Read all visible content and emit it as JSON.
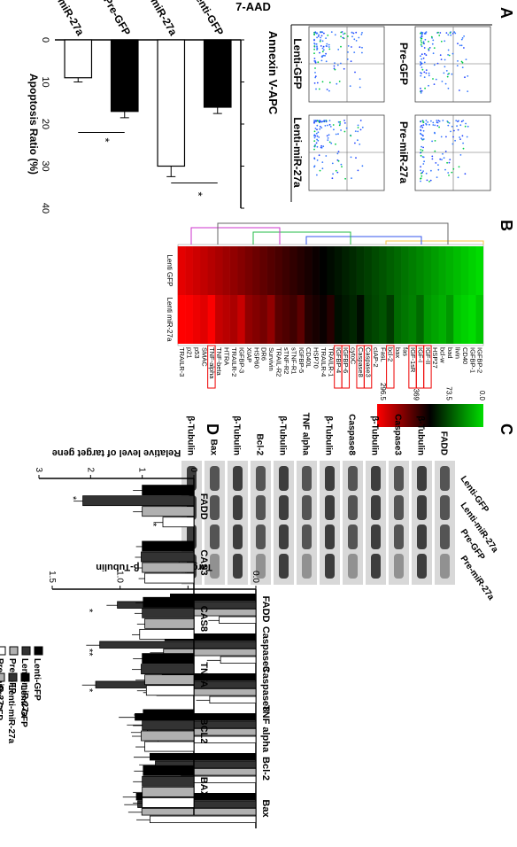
{
  "panels": {
    "a": "A",
    "b": "B",
    "c": "C",
    "d": "D"
  },
  "colors": {
    "black": "#000000",
    "dark": "#333333",
    "gray": "#b0b0b0",
    "white": "#ffffff",
    "heat_green": "#00dd00",
    "heat_red": "#ff0000"
  },
  "panel_a": {
    "axis_y": "7-AAD",
    "axis_x": "Annexin V-APC",
    "scatter_labels": [
      "Lenti-GFP",
      "Lenti-miR-27a",
      "Pre-GFP",
      "Pre-miR-27a"
    ],
    "star": "*"
  },
  "heatmap": {
    "legend_values": [
      "0.0",
      "73.5",
      "369",
      "296.5"
    ],
    "col_labels": [
      "Lenti GFP",
      "Lenti miR-27a"
    ],
    "genes": [
      "IGFBP-2",
      "IGFBP-1",
      "CD40",
      "livin",
      "bad",
      "bcl-w",
      "HSP27",
      "IGF-II",
      "IGF-I",
      "IGF-1sR",
      "fas",
      "bax",
      "bcl-2",
      "FasL",
      "cIAP-2",
      "Caspase3",
      "Caspase8",
      "cytoC",
      "IGFBP-6",
      "IGFBP-4",
      "TRAILR-1",
      "TRAILR-4",
      "HSP70",
      "CD40L",
      "IGFBP-5",
      "sTNF-R1",
      "sTNF-R2",
      "TRAIL-R2",
      "Survivin",
      "DR6",
      "HSP60",
      "XIAP",
      "IGFBP-3",
      "TRAILR-2",
      "HTRA",
      "TNF-beta",
      "TNF-alpha",
      "SMAC",
      "p53",
      "p21",
      "TRAILR-3"
    ],
    "boxed": [
      "IGF-II",
      "IGF-I",
      "IGF-1sR",
      "bcl-2",
      "Caspase3",
      "Caspase8",
      "IGFBP-6",
      "IGFBP-4",
      "TNF-alpha"
    ]
  },
  "blot": {
    "lanes": [
      "Lenti-GFP",
      "Lenti-miR-27a",
      "Pre-GFP",
      "Pre-miR-27a"
    ],
    "rows": [
      "FADD",
      "β-Tubulin",
      "Caspase3",
      "β-Tubulin",
      "Caspase8",
      "β-Tubulin",
      "TNF alpha",
      "β-Tubulin",
      "Bcl-2",
      "β-Tubulin",
      "Bax",
      "β-Tubulin"
    ]
  },
  "chart_data": [
    {
      "type": "bar",
      "xlabel": "Apoptosis Ratio (%)",
      "categories": [
        "Lenti-GFP",
        "Lenti-miR-27a",
        "Pre-GFP",
        "Pre-miR-27a"
      ],
      "values": [
        16,
        30,
        17,
        9
      ],
      "errors": [
        1.5,
        2.5,
        1.5,
        1
      ],
      "fills": [
        "#000000",
        "#ffffff",
        "#000000",
        "#ffffff"
      ],
      "ticks": [
        "0",
        "10",
        "20",
        "30",
        "40"
      ],
      "xlim": [
        0,
        40
      ]
    },
    {
      "type": "bar",
      "ylabel": "Target protein / β-Tubulin",
      "groups": [
        "FADD",
        "Caspase3",
        "Caspase8",
        "TNF alpha",
        "Bcl-2",
        "Bax"
      ],
      "series": [
        {
          "name": "Lenti-GFP",
          "color": "#000000",
          "values": [
            0.63,
            0.67,
            0.69,
            0.89,
            0.78,
            0.88
          ]
        },
        {
          "name": "Lenti-miR-27a",
          "color": "#333333",
          "values": [
            1.02,
            1.15,
            1.18,
            0.83,
            0.74,
            0.87
          ]
        },
        {
          "name": "Pre-GFP",
          "color": "#b0b0b0",
          "values": [
            0.62,
            0.68,
            0.73,
            0.8,
            0.6,
            0.84
          ]
        },
        {
          "name": "Pre-miR-27a",
          "color": "#ffffff",
          "values": [
            0.27,
            0.26,
            0.34,
            0.72,
            0.55,
            0.78
          ]
        }
      ],
      "errors": [
        0.08,
        0.1,
        0.1,
        0.12,
        0.12,
        0.1
      ],
      "ticks": [
        "0.0",
        "0.5",
        "1.0",
        "1.5"
      ],
      "ylim": [
        0,
        1.5
      ],
      "stars": [
        "*",
        "**",
        "*"
      ]
    },
    {
      "type": "bar",
      "ylabel": "Relative level of target gene",
      "groups": [
        "FADD",
        "CAS3",
        "CAS8",
        "TNFA",
        "BCL2",
        "BAX"
      ],
      "series": [
        {
          "name": "Lenti-GFP",
          "color": "#000000",
          "values": [
            1.0,
            1.0,
            0.98,
            1.0,
            0.98,
            0.98
          ]
        },
        {
          "name": "Lenti-miR-27a",
          "color": "#333333",
          "values": [
            2.15,
            1.02,
            1.0,
            1.02,
            1.0,
            1.0
          ]
        },
        {
          "name": "Pre-GFP",
          "color": "#b0b0b0",
          "values": [
            1.0,
            1.0,
            0.95,
            0.95,
            1.02,
            1.0
          ]
        },
        {
          "name": "Pre-miR-27a",
          "color": "#ffffff",
          "values": [
            0.6,
            0.95,
            1.05,
            0.92,
            0.95,
            1.0
          ]
        }
      ],
      "errors": [
        0.18,
        0.12,
        0.15,
        0.18,
        0.18,
        0.18
      ],
      "ticks": [
        "0",
        "1",
        "2",
        "3"
      ],
      "ylim": [
        0,
        3
      ],
      "stars": [
        "*",
        "*"
      ]
    }
  ]
}
